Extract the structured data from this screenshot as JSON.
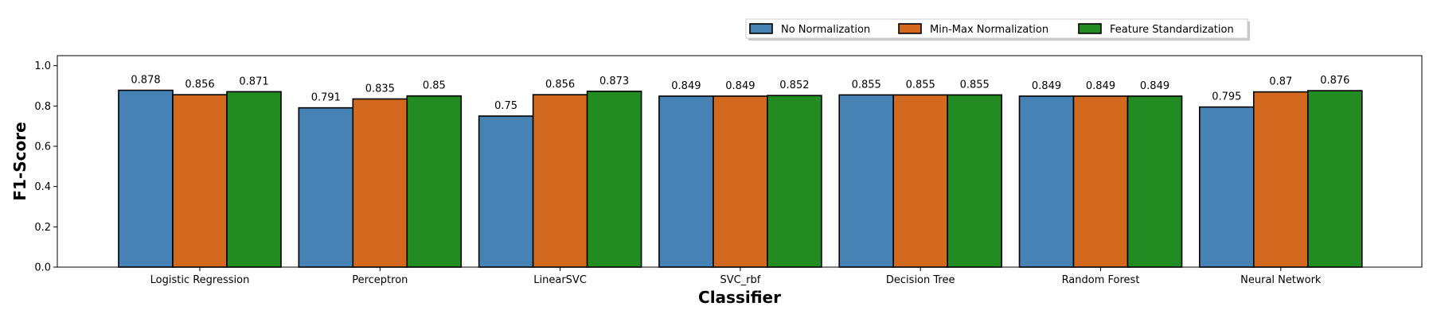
{
  "chart_data": {
    "type": "bar",
    "xlabel": "Classifier",
    "ylabel": "F1-Score",
    "ylim": [
      0,
      1.05
    ],
    "yticks": [
      "0.0",
      "0.2",
      "0.4",
      "0.6",
      "0.8",
      "1.0"
    ],
    "grid": false,
    "legend_position": "top-right",
    "categories": [
      "Logistic Regression",
      "Perceptron",
      "LinearSVC",
      "SVC_rbf",
      "Decision Tree",
      "Random Forest",
      "Neural Network"
    ],
    "series": [
      {
        "name": "No Normalization",
        "color": "#4682b4",
        "values": [
          0.878,
          0.791,
          0.75,
          0.849,
          0.855,
          0.849,
          0.795
        ],
        "labels": [
          "0.878",
          "0.791",
          "0.75",
          "0.849",
          "0.855",
          "0.849",
          "0.795"
        ]
      },
      {
        "name": "Min-Max Normalization",
        "color": "#d2691e",
        "values": [
          0.856,
          0.835,
          0.856,
          0.849,
          0.855,
          0.849,
          0.87
        ],
        "labels": [
          "0.856",
          "0.835",
          "0.856",
          "0.849",
          "0.855",
          "0.849",
          "0.87"
        ]
      },
      {
        "name": "Feature Standardization",
        "color": "#228b22",
        "values": [
          0.871,
          0.85,
          0.873,
          0.852,
          0.855,
          0.849,
          0.876
        ],
        "labels": [
          "0.871",
          "0.85",
          "0.873",
          "0.852",
          "0.855",
          "0.849",
          "0.876"
        ]
      }
    ]
  }
}
